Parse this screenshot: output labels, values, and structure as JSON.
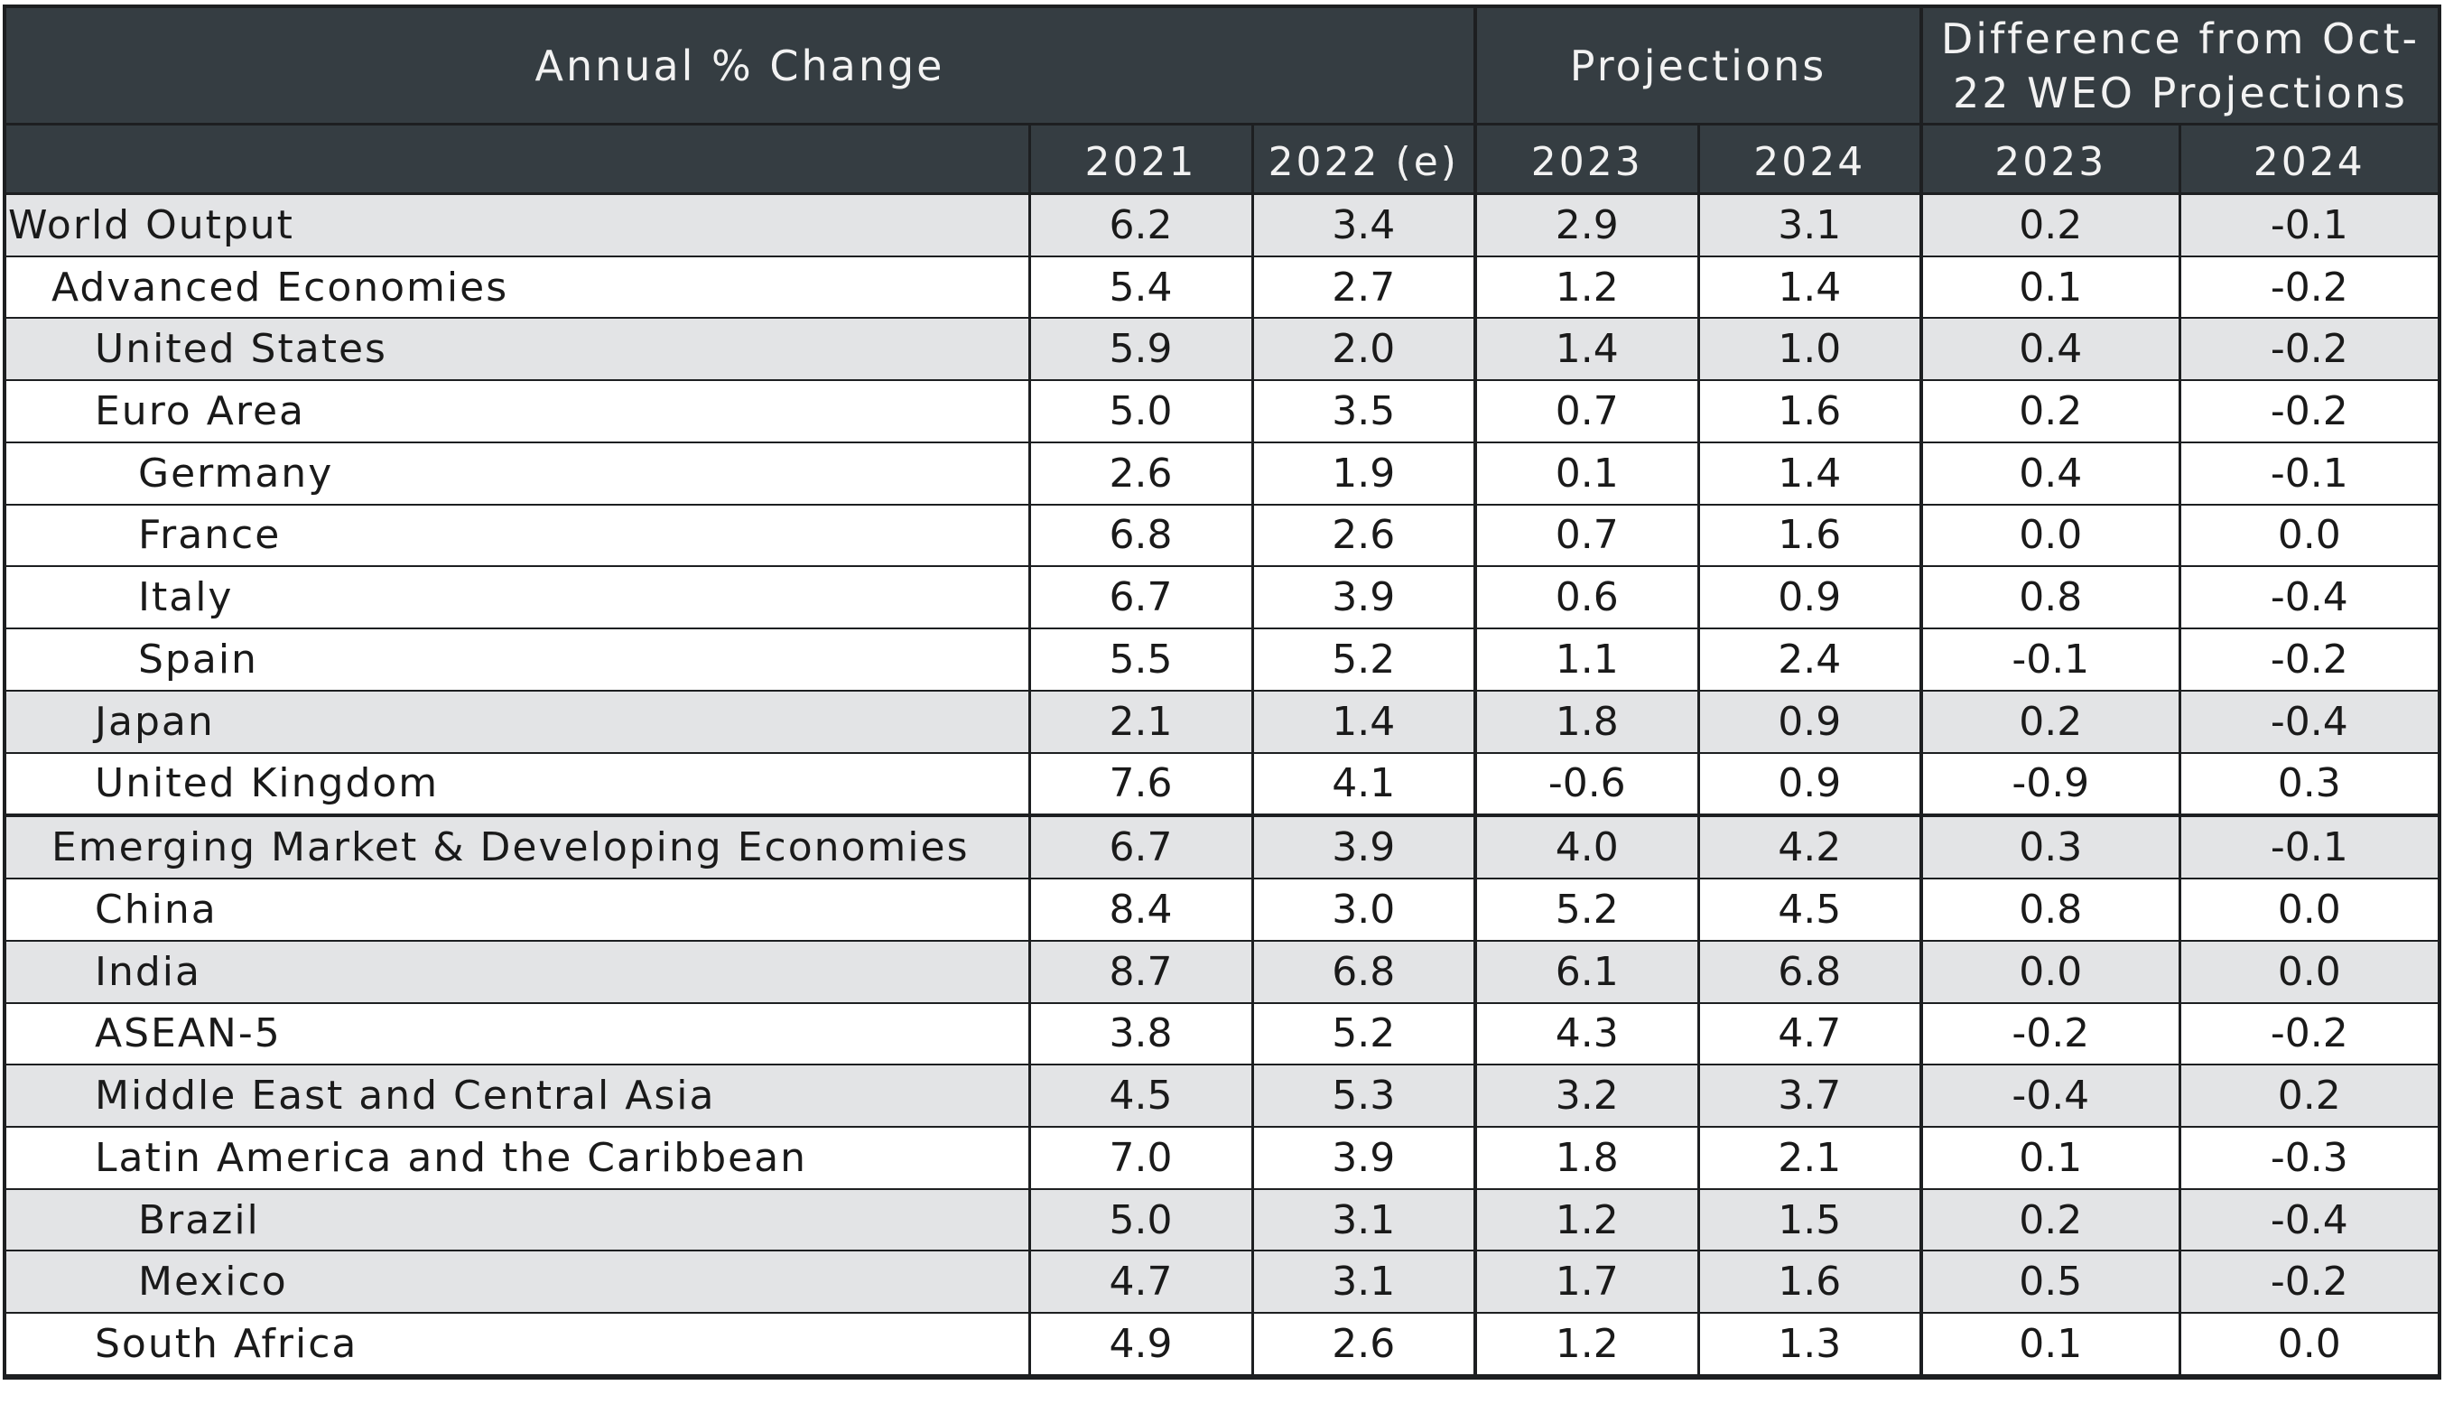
{
  "header": {
    "group_annual": "Annual % Change",
    "group_projections": "Projections",
    "group_difference": "Difference from Oct-22 WEO Projections",
    "columns": [
      "2021",
      "2022 (e)",
      "2023",
      "2024",
      "2023",
      "2024"
    ]
  },
  "rows": [
    {
      "label": "World Output",
      "values": [
        "6.2",
        "3.4",
        "2.9",
        "3.1",
        "0.2",
        "-0.1"
      ]
    },
    {
      "label": "Advanced Economies",
      "values": [
        "5.4",
        "2.7",
        "1.2",
        "1.4",
        "0.1",
        "-0.2"
      ]
    },
    {
      "label": "United States",
      "values": [
        "5.9",
        "2.0",
        "1.4",
        "1.0",
        "0.4",
        "-0.2"
      ]
    },
    {
      "label": "Euro Area",
      "values": [
        "5.0",
        "3.5",
        "0.7",
        "1.6",
        "0.2",
        "-0.2"
      ]
    },
    {
      "label": "Germany",
      "values": [
        "2.6",
        "1.9",
        "0.1",
        "1.4",
        "0.4",
        "-0.1"
      ]
    },
    {
      "label": "France",
      "values": [
        "6.8",
        "2.6",
        "0.7",
        "1.6",
        "0.0",
        "0.0"
      ]
    },
    {
      "label": "Italy",
      "values": [
        "6.7",
        "3.9",
        "0.6",
        "0.9",
        "0.8",
        "-0.4"
      ]
    },
    {
      "label": "Spain",
      "values": [
        "5.5",
        "5.2",
        "1.1",
        "2.4",
        "-0.1",
        "-0.2"
      ]
    },
    {
      "label": "Japan",
      "values": [
        "2.1",
        "1.4",
        "1.8",
        "0.9",
        "0.2",
        "-0.4"
      ]
    },
    {
      "label": "United Kingdom",
      "values": [
        "7.6",
        "4.1",
        "-0.6",
        "0.9",
        "-0.9",
        "0.3"
      ]
    },
    {
      "label": "Emerging Market & Developing Economies",
      "values": [
        "6.7",
        "3.9",
        "4.0",
        "4.2",
        "0.3",
        "-0.1"
      ]
    },
    {
      "label": "China",
      "values": [
        "8.4",
        "3.0",
        "5.2",
        "4.5",
        "0.8",
        "0.0"
      ]
    },
    {
      "label": "India",
      "values": [
        "8.7",
        "6.8",
        "6.1",
        "6.8",
        "0.0",
        "0.0"
      ]
    },
    {
      "label": "ASEAN-5",
      "values": [
        "3.8",
        "5.2",
        "4.3",
        "4.7",
        "-0.2",
        "-0.2"
      ]
    },
    {
      "label": "Middle East and Central Asia",
      "values": [
        "4.5",
        "5.3",
        "3.2",
        "3.7",
        "-0.4",
        "0.2"
      ]
    },
    {
      "label": "Latin America and the Caribbean",
      "values": [
        "7.0",
        "3.9",
        "1.8",
        "2.1",
        "0.1",
        "-0.3"
      ]
    },
    {
      "label": "Brazil",
      "values": [
        "5.0",
        "3.1",
        "1.2",
        "1.5",
        "0.2",
        "-0.4"
      ]
    },
    {
      "label": "Mexico",
      "values": [
        "4.7",
        "3.1",
        "1.7",
        "1.6",
        "0.5",
        "-0.2"
      ]
    },
    {
      "label": "South Africa",
      "values": [
        "4.9",
        "2.6",
        "1.2",
        "1.3",
        "0.1",
        "0.0"
      ]
    }
  ]
}
